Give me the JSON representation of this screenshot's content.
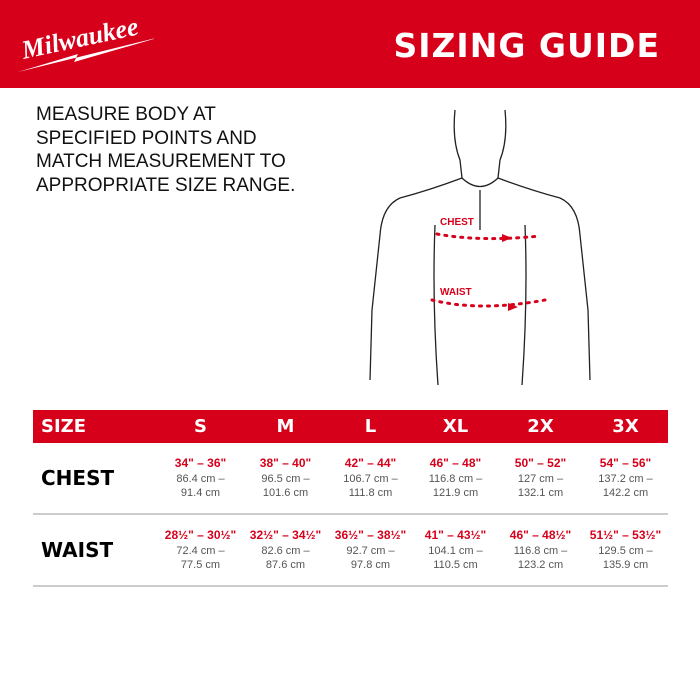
{
  "header": {
    "brand": "Milwaukee",
    "title": "SIZING GUIDE",
    "color": "#d7001b"
  },
  "instructions": "MEASURE BODY AT SPECIFIED POINTS AND MATCH MEASUREMENT TO APPROPRIATE SIZE RANGE.",
  "figure": {
    "chest_label": "CHEST",
    "waist_label": "WAIST"
  },
  "table": {
    "size_label": "SIZE",
    "sizes": [
      "S",
      "M",
      "L",
      "XL",
      "2X",
      "3X"
    ],
    "rows": [
      {
        "label": "CHEST",
        "cells": [
          {
            "in": "34\" – 36\"",
            "cm": "86.4 cm – 91.4 cm"
          },
          {
            "in": "38\" – 40\"",
            "cm": "96.5 cm – 101.6 cm"
          },
          {
            "in": "42\" – 44\"",
            "cm": "106.7 cm – 111.8 cm"
          },
          {
            "in": "46\" – 48\"",
            "cm": "116.8 cm – 121.9 cm"
          },
          {
            "in": "50\" – 52\"",
            "cm": "127 cm – 132.1 cm"
          },
          {
            "in": "54\" – 56\"",
            "cm": "137.2 cm – 142.2 cm"
          }
        ]
      },
      {
        "label": "WAIST",
        "cells": [
          {
            "in": "28½\" – 30½\"",
            "cm": "72.4 cm – 77.5 cm"
          },
          {
            "in": "32½\" – 34½\"",
            "cm": "82.6 cm – 87.6 cm"
          },
          {
            "in": "36½\" – 38½\"",
            "cm": "92.7 cm – 97.8 cm"
          },
          {
            "in": "41\" – 43½\"",
            "cm": "104.1 cm – 110.5 cm"
          },
          {
            "in": "46\" – 48½\"",
            "cm": "116.8 cm – 123.2 cm"
          },
          {
            "in": "51½\" – 53½\"",
            "cm": "129.5 cm – 135.9 cm"
          }
        ]
      }
    ]
  }
}
